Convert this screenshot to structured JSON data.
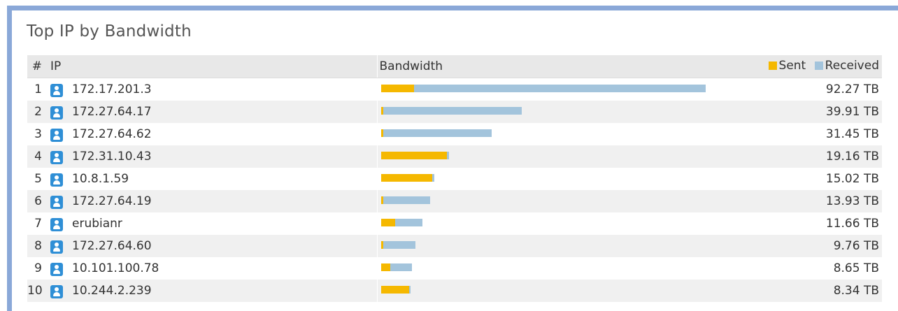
{
  "widget": {
    "title": "Top IP by Bandwidth"
  },
  "columns": {
    "rank": "#",
    "ip": "IP",
    "bandwidth": "Bandwidth",
    "legend": [
      {
        "label": "Sent",
        "color": "#f5b800"
      },
      {
        "label": "Received",
        "color": "#a3c4dc"
      }
    ]
  },
  "icon": "user-icon",
  "rows": [
    {
      "rank": "1",
      "ip": "172.17.201.3",
      "total": "92.27 TB",
      "total_tb": 92.27,
      "sent_tb": 9.4,
      "received_tb": 82.87
    },
    {
      "rank": "2",
      "ip": "172.27.64.17",
      "total": "39.91 TB",
      "total_tb": 39.91,
      "sent_tb": 0.6,
      "received_tb": 39.31
    },
    {
      "rank": "3",
      "ip": "172.27.64.62",
      "total": "31.45 TB",
      "total_tb": 31.45,
      "sent_tb": 0.6,
      "received_tb": 30.85
    },
    {
      "rank": "4",
      "ip": "172.31.10.43",
      "total": "19.16 TB",
      "total_tb": 19.16,
      "sent_tb": 18.6,
      "received_tb": 0.56
    },
    {
      "rank": "5",
      "ip": "10.8.1.59",
      "total": "15.02 TB",
      "total_tb": 15.02,
      "sent_tb": 14.5,
      "received_tb": 0.52
    },
    {
      "rank": "6",
      "ip": "172.27.64.19",
      "total": "13.93 TB",
      "total_tb": 13.93,
      "sent_tb": 0.6,
      "received_tb": 13.33
    },
    {
      "rank": "7",
      "ip": "erubianr",
      "total": "11.66 TB",
      "total_tb": 11.66,
      "sent_tb": 3.9,
      "received_tb": 7.76
    },
    {
      "rank": "8",
      "ip": "172.27.64.60",
      "total": "9.76 TB",
      "total_tb": 9.76,
      "sent_tb": 0.6,
      "received_tb": 9.16
    },
    {
      "rank": "9",
      "ip": "10.101.100.78",
      "total": "8.65 TB",
      "total_tb": 8.65,
      "sent_tb": 2.5,
      "received_tb": 6.15
    },
    {
      "rank": "10",
      "ip": "10.244.2.239",
      "total": "8.34 TB",
      "total_tb": 8.34,
      "sent_tb": 8.0,
      "received_tb": 0.34
    }
  ]
}
